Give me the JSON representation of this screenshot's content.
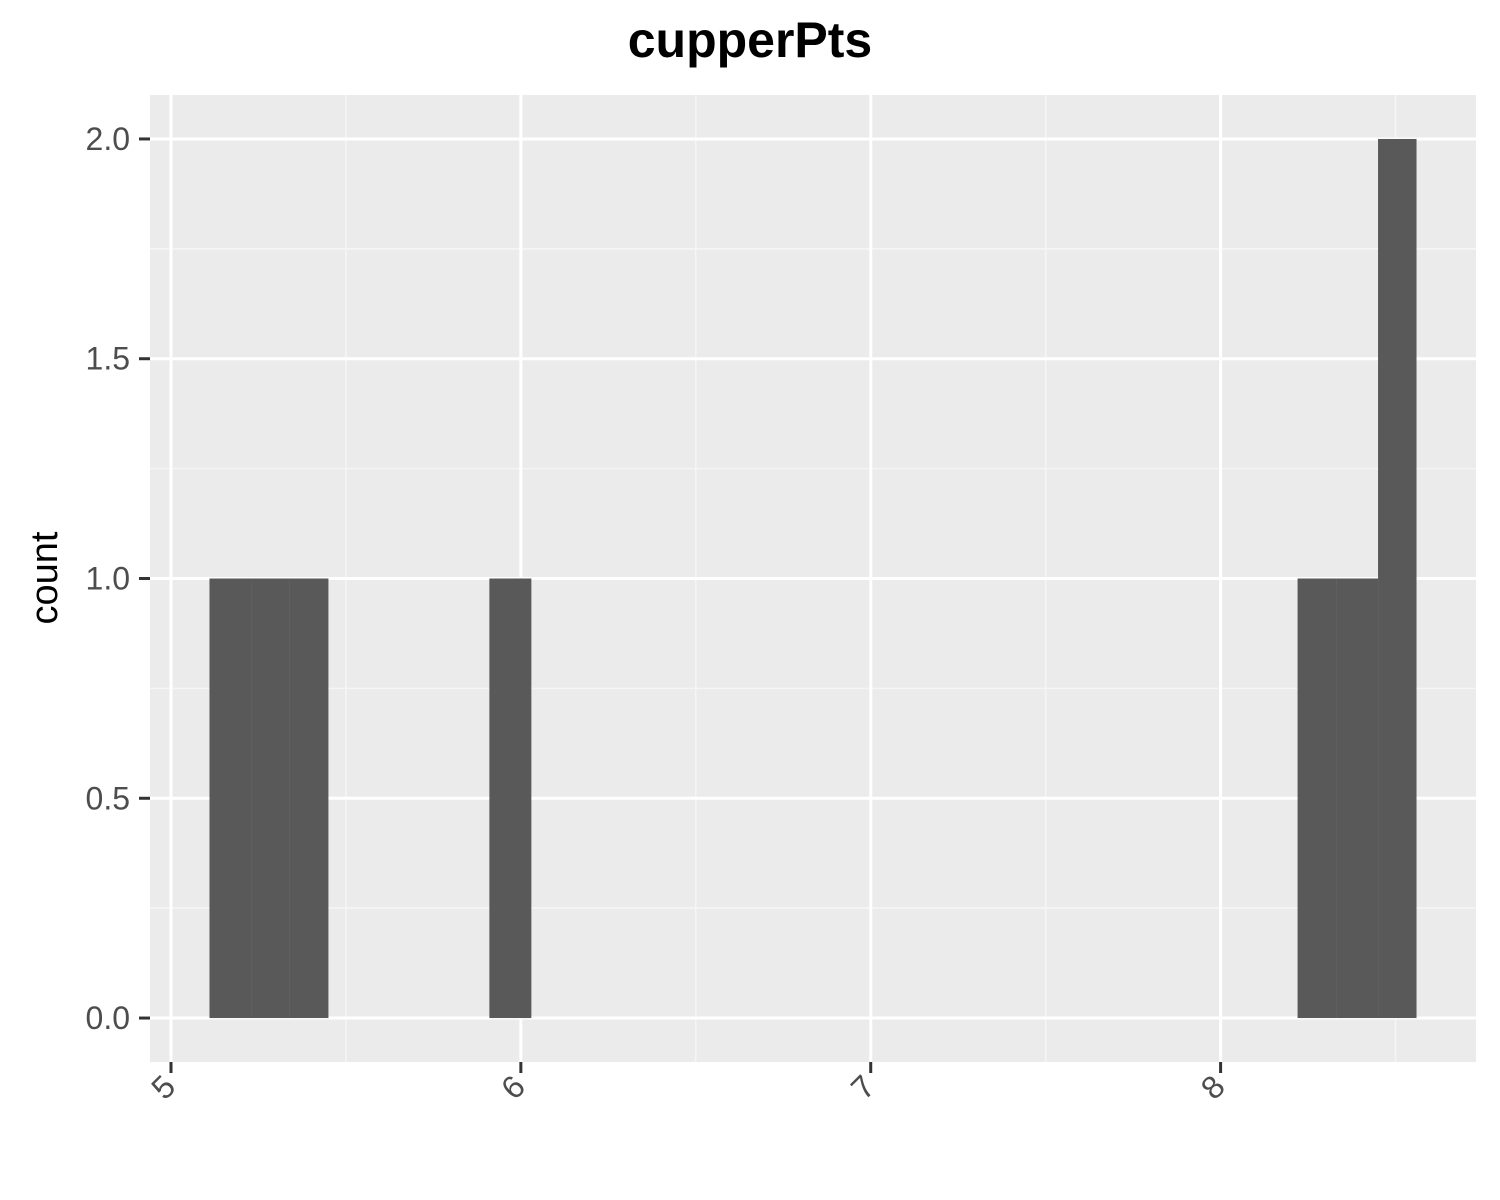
{
  "chart_data": {
    "type": "bar",
    "title": "cupperPts",
    "xlabel": "",
    "ylabel": "count",
    "xlim": [
      4.94,
      8.73
    ],
    "ylim": [
      -0.1,
      2.1
    ],
    "xticks": [
      5,
      6,
      7,
      8
    ],
    "xtick_labels": [
      "5",
      "6",
      "7",
      "8"
    ],
    "yticks": [
      0.0,
      0.5,
      1.0,
      1.5,
      2.0
    ],
    "ytick_labels": [
      "0.0",
      "0.5",
      "1.0",
      "1.5",
      "2.0"
    ],
    "x_minor_gridlines": [
      5.5,
      6.5,
      7.5,
      8.5
    ],
    "y_minor_gridlines": [
      0.25,
      0.75,
      1.25,
      1.75
    ],
    "x_tick_label_rotation": "rotated -45°",
    "grid": true,
    "bars": [
      {
        "xmin": 5.11,
        "xmax": 5.23,
        "count": 1
      },
      {
        "xmin": 5.23,
        "xmax": 5.34,
        "count": 1
      },
      {
        "xmin": 5.34,
        "xmax": 5.45,
        "count": 1
      },
      {
        "xmin": 5.91,
        "xmax": 6.03,
        "count": 1
      },
      {
        "xmin": 8.22,
        "xmax": 8.33,
        "count": 1
      },
      {
        "xmin": 8.33,
        "xmax": 8.45,
        "count": 1
      },
      {
        "xmin": 8.45,
        "xmax": 8.56,
        "count": 2
      }
    ],
    "colors": {
      "panel_background": "#ebebeb",
      "grid_major": "#ffffff",
      "grid_minor": "#f5f5f5",
      "bar_fill": "#595959",
      "tick_text": "#4d4d4d",
      "tick_mark": "#333333"
    }
  }
}
